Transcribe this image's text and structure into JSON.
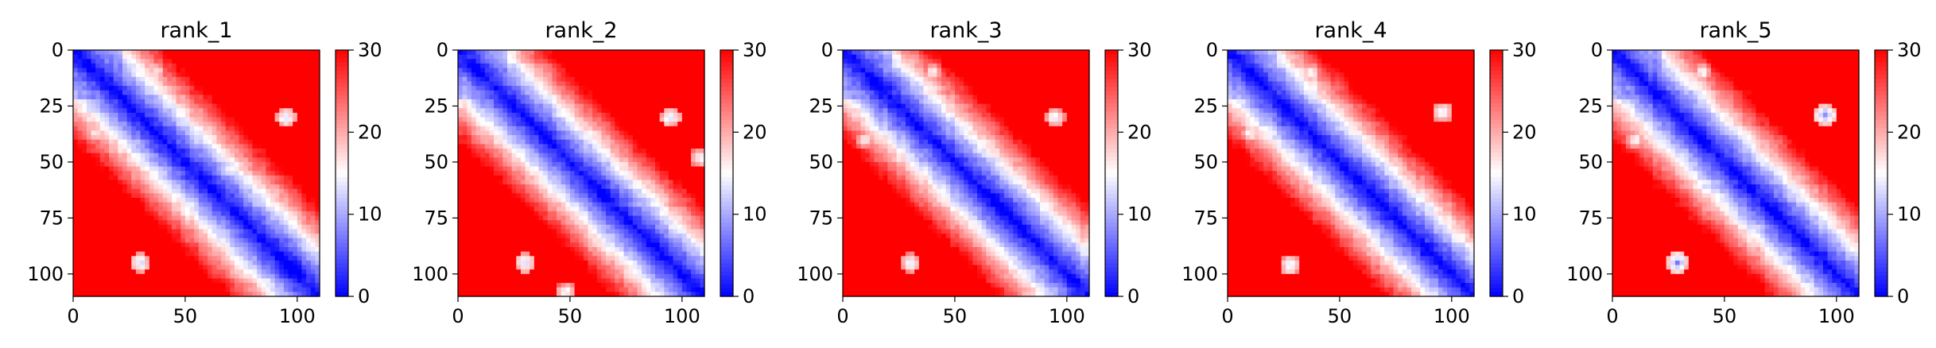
{
  "chart_data": [
    {
      "type": "heatmap",
      "title": "rank_1",
      "xlabel": "",
      "ylabel": "",
      "xlim": [
        0,
        110
      ],
      "ylim": [
        110,
        0
      ],
      "xticks": [
        "0",
        "50",
        "100"
      ],
      "yticks": [
        "0",
        "25",
        "50",
        "75",
        "100"
      ],
      "colorbar": {
        "min": 0,
        "max": 30,
        "ticks": [
          "0",
          "10",
          "20",
          "30"
        ],
        "cmap": "bwr"
      },
      "description_values": {
        "diagonal": 0,
        "off_diagonal_max": 30
      },
      "features": [
        {
          "i": 30,
          "j": 95,
          "v": 12
        },
        {
          "i": 95,
          "j": 30,
          "v": 12
        },
        {
          "i": 10,
          "j": 37,
          "v": 14
        },
        {
          "i": 37,
          "j": 10,
          "v": 14
        }
      ]
    },
    {
      "type": "heatmap",
      "title": "rank_2",
      "xlabel": "",
      "ylabel": "",
      "xlim": [
        0,
        110
      ],
      "ylim": [
        110,
        0
      ],
      "xticks": [
        "0",
        "50",
        "100"
      ],
      "yticks": [
        "0",
        "25",
        "50",
        "75",
        "100"
      ],
      "colorbar": {
        "min": 0,
        "max": 30,
        "ticks": [
          "0",
          "10",
          "20",
          "30"
        ],
        "cmap": "bwr"
      },
      "description_values": {
        "diagonal": 0,
        "off_diagonal_max": 30
      },
      "features": [
        {
          "i": 30,
          "j": 95,
          "v": 11
        },
        {
          "i": 95,
          "j": 30,
          "v": 11
        },
        {
          "i": 48,
          "j": 108,
          "v": 13
        },
        {
          "i": 108,
          "j": 48,
          "v": 13
        }
      ]
    },
    {
      "type": "heatmap",
      "title": "rank_3",
      "xlabel": "",
      "ylabel": "",
      "xlim": [
        0,
        110
      ],
      "ylim": [
        110,
        0
      ],
      "xticks": [
        "0",
        "50",
        "100"
      ],
      "yticks": [
        "0",
        "25",
        "50",
        "75",
        "100"
      ],
      "colorbar": {
        "min": 0,
        "max": 30,
        "ticks": [
          "0",
          "10",
          "20",
          "30"
        ],
        "cmap": "bwr"
      },
      "description_values": {
        "diagonal": 0,
        "off_diagonal_max": 30
      },
      "features": [
        {
          "i": 30,
          "j": 95,
          "v": 12
        },
        {
          "i": 95,
          "j": 30,
          "v": 12
        },
        {
          "i": 10,
          "j": 40,
          "v": 14
        },
        {
          "i": 40,
          "j": 10,
          "v": 14
        }
      ]
    },
    {
      "type": "heatmap",
      "title": "rank_4",
      "xlabel": "",
      "ylabel": "",
      "xlim": [
        0,
        110
      ],
      "ylim": [
        110,
        0
      ],
      "xticks": [
        "0",
        "50",
        "100"
      ],
      "yticks": [
        "0",
        "25",
        "50",
        "75",
        "100"
      ],
      "colorbar": {
        "min": 0,
        "max": 30,
        "ticks": [
          "0",
          "10",
          "20",
          "30"
        ],
        "cmap": "bwr"
      },
      "description_values": {
        "diagonal": 0,
        "off_diagonal_max": 30
      },
      "features": [
        {
          "i": 28,
          "j": 96,
          "v": 12
        },
        {
          "i": 96,
          "j": 28,
          "v": 12
        },
        {
          "i": 10,
          "j": 37,
          "v": 14
        },
        {
          "i": 37,
          "j": 10,
          "v": 14
        }
      ]
    },
    {
      "type": "heatmap",
      "title": "rank_5",
      "xlabel": "",
      "ylabel": "",
      "xlim": [
        0,
        110
      ],
      "ylim": [
        110,
        0
      ],
      "xticks": [
        "0",
        "50",
        "100"
      ],
      "yticks": [
        "0",
        "25",
        "50",
        "75",
        "100"
      ],
      "colorbar": {
        "min": 0,
        "max": 30,
        "ticks": [
          "0",
          "10",
          "20",
          "30"
        ],
        "cmap": "bwr"
      },
      "description_values": {
        "diagonal": 0,
        "off_diagonal_max": 30
      },
      "features": [
        {
          "i": 29,
          "j": 95,
          "v": 8
        },
        {
          "i": 95,
          "j": 29,
          "v": 8
        },
        {
          "i": 10,
          "j": 40,
          "v": 14
        },
        {
          "i": 40,
          "j": 10,
          "v": 14
        }
      ]
    }
  ]
}
